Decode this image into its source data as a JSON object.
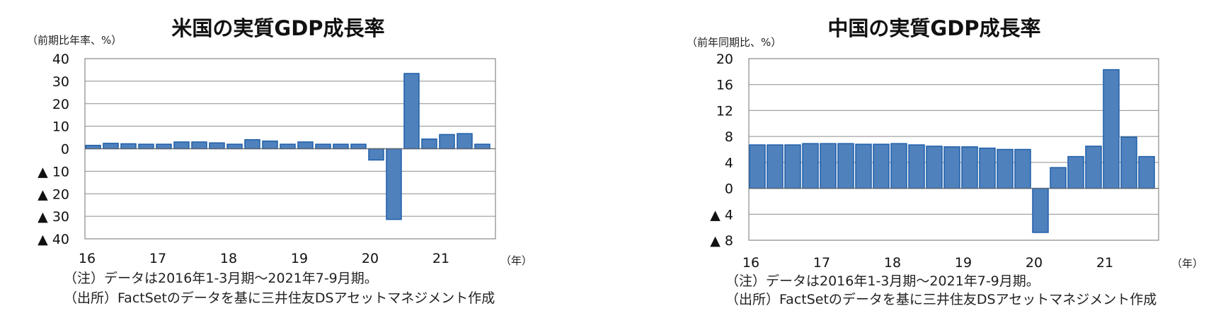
{
  "chart_data": [
    {
      "type": "bar",
      "title": "米国の実質GDP成長率",
      "ylabel": "（前期比年率、%）",
      "xunit": "（年）",
      "ylim": [
        -40,
        40
      ],
      "yticks": [
        40,
        30,
        20,
        10,
        0,
        -10,
        -20,
        -30,
        -40
      ],
      "ytick_labels": [
        "40",
        "30",
        "20",
        "10",
        "0",
        "▲ 10",
        "▲ 20",
        "▲ 30",
        "▲ 40"
      ],
      "year_labels": [
        "16",
        "17",
        "18",
        "19",
        "20",
        "21"
      ],
      "categories": [
        "2016Q1",
        "2016Q2",
        "2016Q3",
        "2016Q4",
        "2017Q1",
        "2017Q2",
        "2017Q3",
        "2017Q4",
        "2018Q1",
        "2018Q2",
        "2018Q3",
        "2018Q4",
        "2019Q1",
        "2019Q2",
        "2019Q3",
        "2019Q4",
        "2020Q1",
        "2020Q2",
        "2020Q3",
        "2020Q4",
        "2021Q1",
        "2021Q2",
        "2021Q3"
      ],
      "values": [
        1.5,
        2.4,
        2.2,
        2.0,
        2.0,
        3.0,
        3.0,
        2.6,
        2.0,
        4.0,
        3.4,
        2.0,
        3.0,
        2.0,
        2.0,
        2.0,
        -5.0,
        -31.4,
        33.4,
        4.3,
        6.3,
        6.7,
        2.0
      ],
      "grid": true,
      "color": "#4f81bd",
      "edge_color": "#1f5fa8"
    },
    {
      "type": "bar",
      "title": "中国の実質GDP成長率",
      "ylabel": "（前年同期比、%）",
      "xunit": "（年）",
      "ylim": [
        -8,
        20
      ],
      "yticks": [
        20,
        16,
        12,
        8,
        4,
        0,
        -4,
        -8
      ],
      "ytick_labels": [
        "20",
        "16",
        "12",
        "8",
        "4",
        "0",
        "▲ 4",
        "▲ 8"
      ],
      "year_labels": [
        "16",
        "17",
        "18",
        "19",
        "20",
        "21"
      ],
      "categories": [
        "2016Q1",
        "2016Q2",
        "2016Q3",
        "2016Q4",
        "2017Q1",
        "2017Q2",
        "2017Q3",
        "2017Q4",
        "2018Q1",
        "2018Q2",
        "2018Q3",
        "2018Q4",
        "2019Q1",
        "2019Q2",
        "2019Q3",
        "2019Q4",
        "2020Q1",
        "2020Q2",
        "2020Q3",
        "2020Q4",
        "2021Q1",
        "2021Q2",
        "2021Q3"
      ],
      "values": [
        6.7,
        6.7,
        6.7,
        6.9,
        6.9,
        6.9,
        6.8,
        6.8,
        6.9,
        6.7,
        6.5,
        6.4,
        6.4,
        6.2,
        6.0,
        6.0,
        -6.8,
        3.2,
        4.9,
        6.5,
        18.3,
        7.9,
        4.9
      ],
      "grid": true,
      "color": "#4f81bd",
      "edge_color": "#1f5fa8"
    }
  ],
  "notes": {
    "left": {
      "note": "（注）データは2016年1-3月期～2021年7-9月期。",
      "source": "（出所）FactSetのデータを基に三井住友DSアセットマネジメント作成"
    },
    "right": {
      "note": "（注）データは2016年1-3月期～2021年7-9月期。",
      "source": "（出所）FactSetのデータを基に三井住友DSアセットマネジメント作成"
    }
  }
}
